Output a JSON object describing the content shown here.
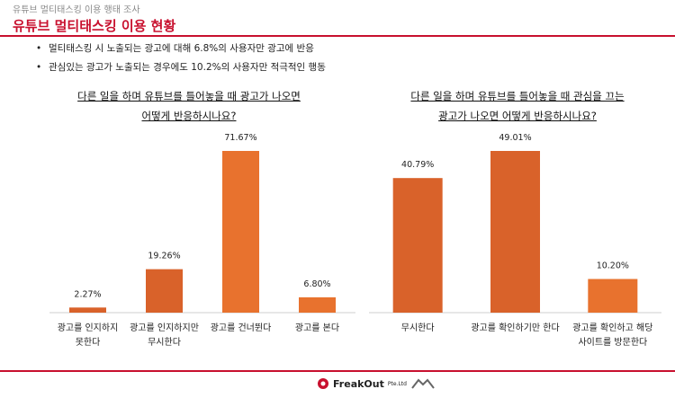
{
  "header": {
    "breadcrumb": "유튜브 멀티태스킹 이용 행태 조사",
    "title": "유튜브 멀티태스킹 이용 현황"
  },
  "bullets": [
    "멀티태스킹 시 노출되는 광고에 대해 6.8%의 사용자만 광고에 반응",
    "관심있는 광고가 노출되는 경우에도 10.2%의 사용자만 적극적인 행동"
  ],
  "footer": {
    "brand": "FreakOut",
    "brand_sub": "Pte.Ltd"
  },
  "colors": {
    "accent": "#c8102e",
    "bar": "#e8722e",
    "bar_dark": "#d9622a"
  },
  "chart_data": [
    {
      "type": "bar",
      "title_lines": [
        "다른 일을 하며 유튜브를 틀어놓을 때 광고가 나오면",
        "어떻게 반응하시나요?"
      ],
      "categories": [
        [
          "광고를 인지하지",
          "못한다"
        ],
        [
          "광고를 인지하지만",
          "무시한다"
        ],
        [
          "광고를 건너뛴다"
        ],
        [
          "광고를 본다"
        ]
      ],
      "values": [
        2.27,
        19.26,
        71.67,
        6.8
      ],
      "labels": [
        "2.27%",
        "19.26%",
        "71.67%",
        "6.80%"
      ]
    },
    {
      "type": "bar",
      "title_lines": [
        "다른 일을 하며 유튜브를 틀어놓을 때 관심을 끄는",
        "광고가 나오면 어떻게 반응하시나요?"
      ],
      "categories": [
        [
          "무시한다"
        ],
        [
          "광고를 확인하기만 한다"
        ],
        [
          "광고를 확인하고 해당",
          "사이트를 방문한다"
        ]
      ],
      "values": [
        40.79,
        49.01,
        10.2
      ],
      "labels": [
        "40.79%",
        "49.01%",
        "10.20%"
      ]
    }
  ]
}
